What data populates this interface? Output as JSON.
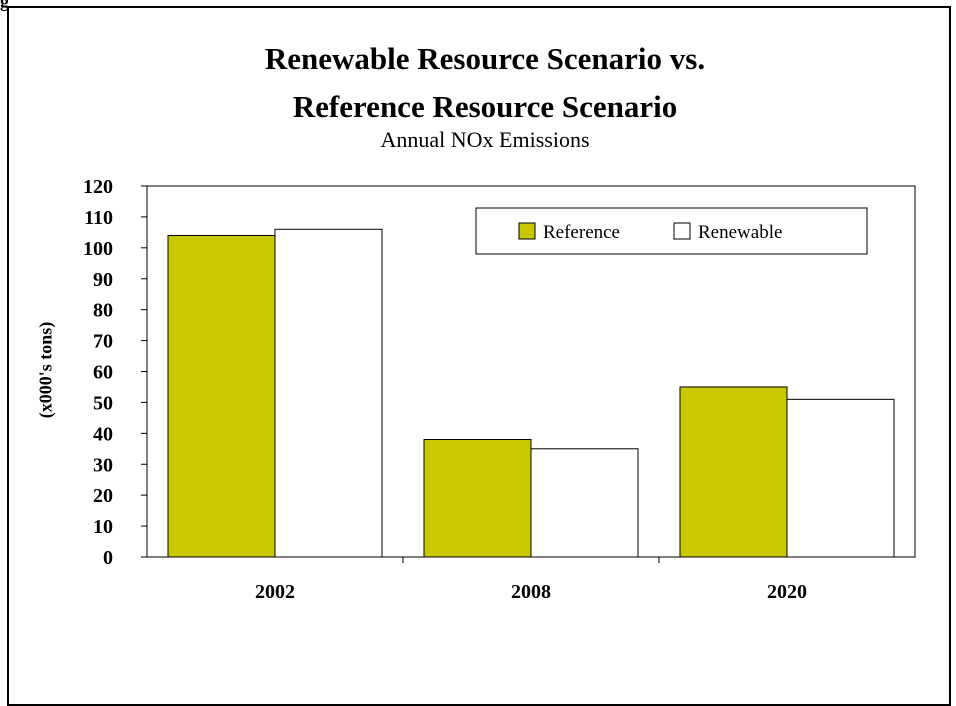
{
  "figure_label": "g",
  "chart_data": {
    "type": "bar",
    "title_line1": "Renewable Resource Scenario vs.",
    "title_line2": "Reference Resource Scenario",
    "subtitle": "Annual NOx Emissions",
    "xlabel": "",
    "ylabel": "(x000's tons)",
    "categories": [
      "2002",
      "2008",
      "2020"
    ],
    "series": [
      {
        "name": "Reference",
        "values": [
          104,
          38,
          55
        ],
        "color": "#c8c800"
      },
      {
        "name": "Renewable",
        "values": [
          106,
          35,
          51
        ],
        "color": "#ffffff"
      }
    ],
    "ylim": [
      0,
      120
    ],
    "yticks": [
      0,
      10,
      20,
      30,
      40,
      50,
      60,
      70,
      80,
      90,
      100,
      110,
      120
    ],
    "grid": false,
    "legend_position": "top-right"
  }
}
